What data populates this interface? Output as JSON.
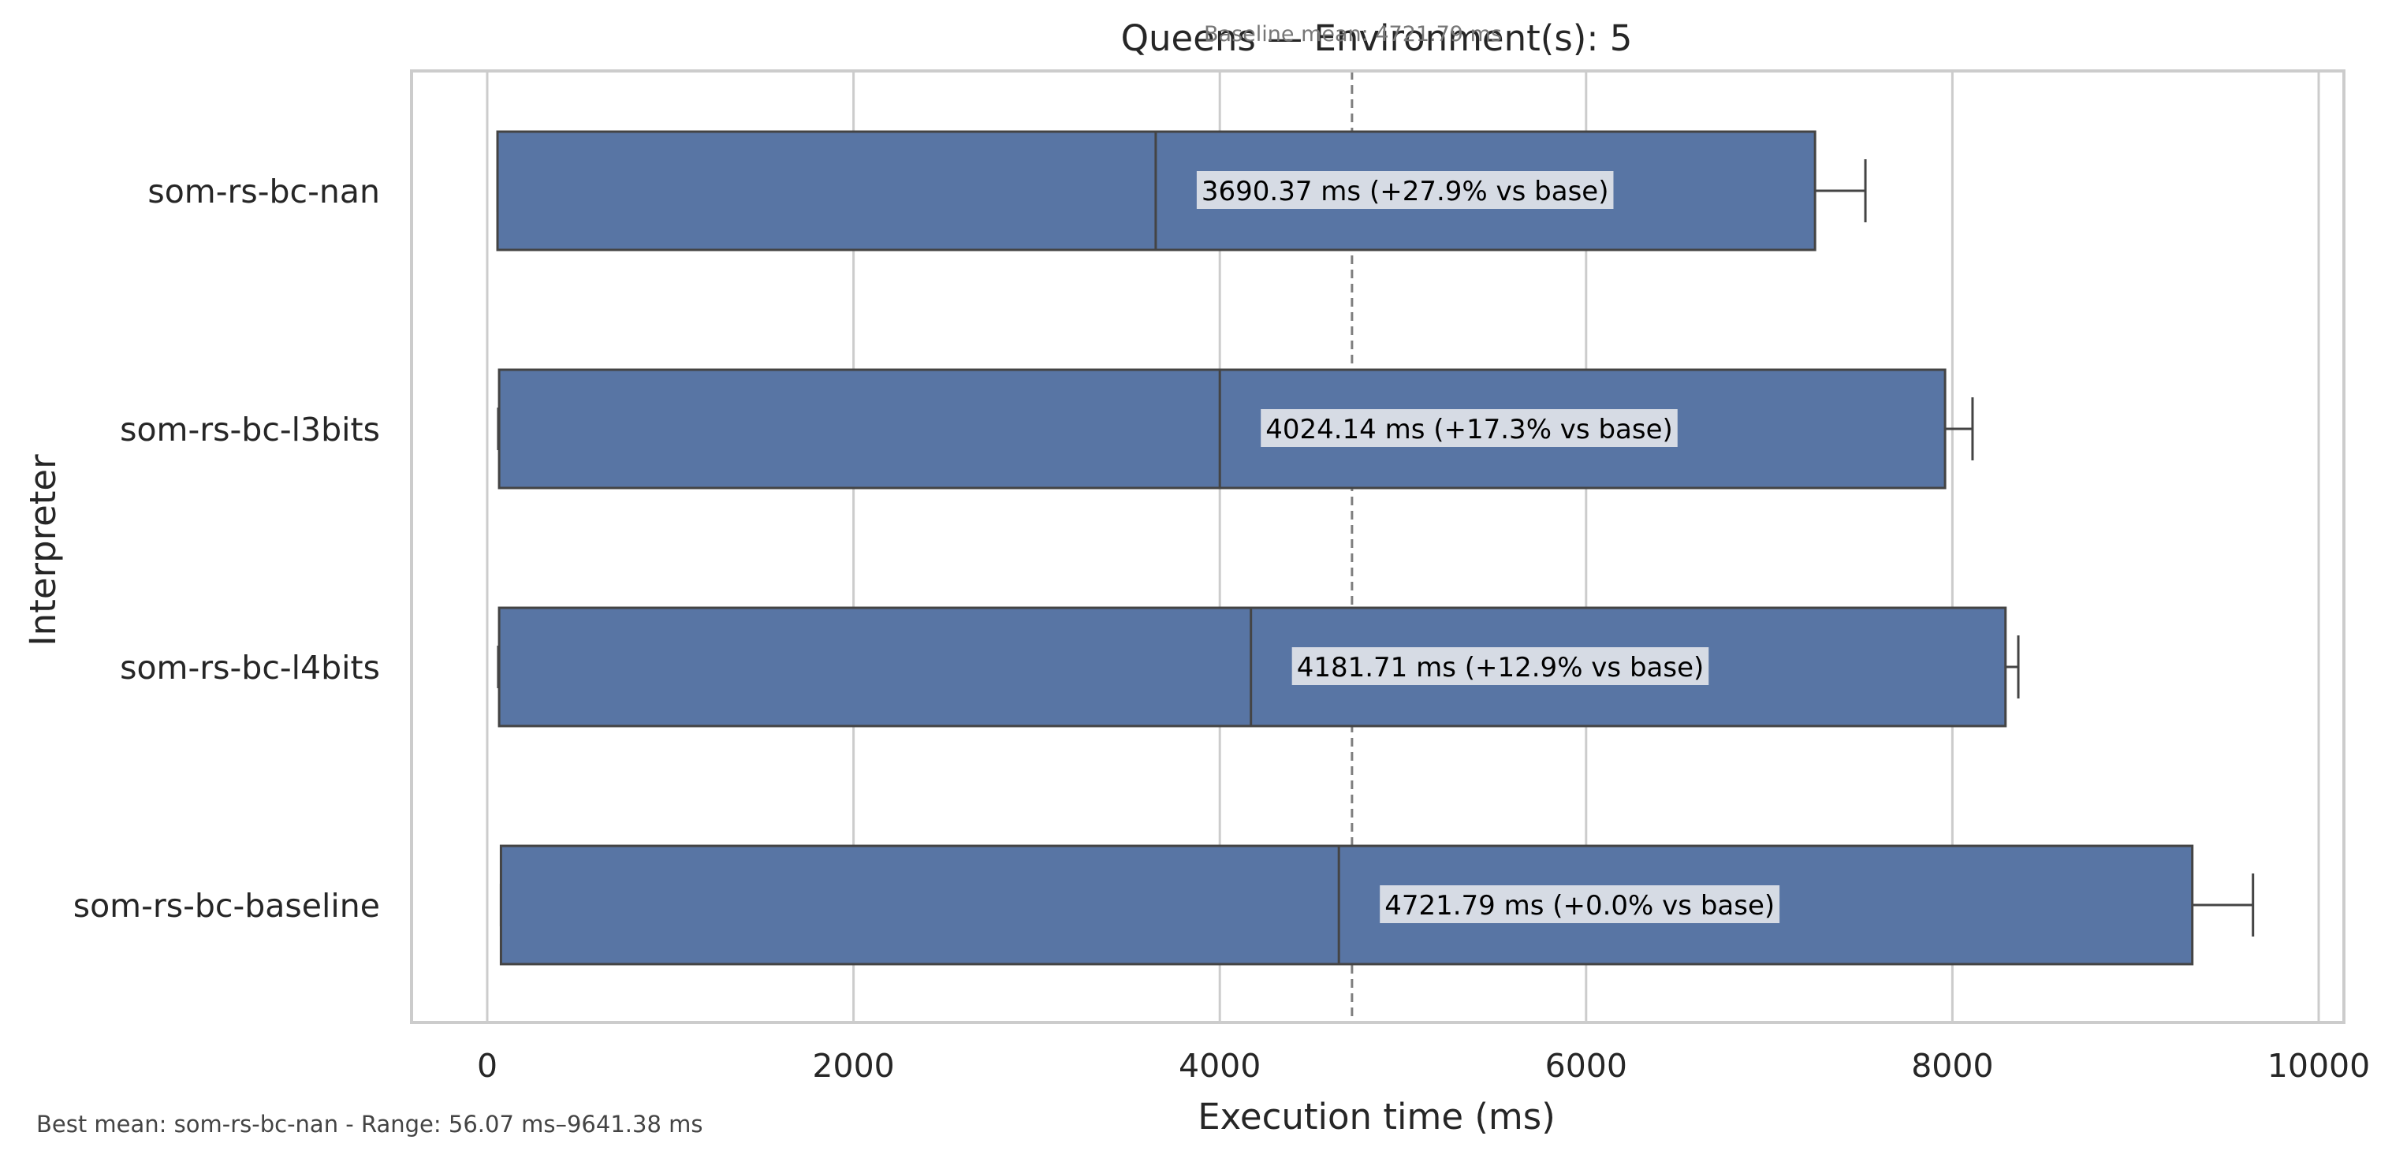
{
  "chart_data": {
    "type": "boxplot",
    "title": "Queens — Environment(s): 5",
    "annotation": "Baseline mean: 4721.79 ms",
    "xlabel": "Execution time (ms)",
    "ylabel": "Interpreter",
    "xlim": [
      -100,
      10050
    ],
    "xticks": [
      0,
      2000,
      4000,
      6000,
      8000,
      10000
    ],
    "xtick_labels": [
      "0",
      "2000",
      "4000",
      "6000",
      "8000",
      "10000"
    ],
    "grid": true,
    "baseline_mean": 4721.79,
    "bar_color": "#5875a4",
    "edge_color": "#444444",
    "categories": [
      "som-rs-bc-nan",
      "som-rs-bc-l3bits",
      "som-rs-bc-l4bits",
      "som-rs-bc-baseline"
    ],
    "series": [
      {
        "category": "som-rs-bc-nan",
        "box": [
          56.07,
          7250
        ],
        "median": 3650,
        "whisker_low": 56.07,
        "whisker_high": 7525,
        "label": "3690.37 ms  (+27.9% vs base)"
      },
      {
        "category": "som-rs-bc-l3bits",
        "box": [
          65,
          7960
        ],
        "median": 4000,
        "whisker_low": 60,
        "whisker_high": 8110,
        "label": "4024.14 ms  (+17.3% vs base)"
      },
      {
        "category": "som-rs-bc-l4bits",
        "box": [
          65,
          8290
        ],
        "median": 4170,
        "whisker_low": 60,
        "whisker_high": 8360,
        "label": "4181.71 ms  (+12.9% vs base)"
      },
      {
        "category": "som-rs-bc-baseline",
        "box": [
          75,
          9310
        ],
        "median": 4650,
        "whisker_low": 75,
        "whisker_high": 9641.38,
        "label": "4721.79 ms  (+0.0% vs base)"
      }
    ],
    "footer": "Best mean: som-rs-bc-nan - Range: 56.07 ms–9641.38 ms"
  }
}
